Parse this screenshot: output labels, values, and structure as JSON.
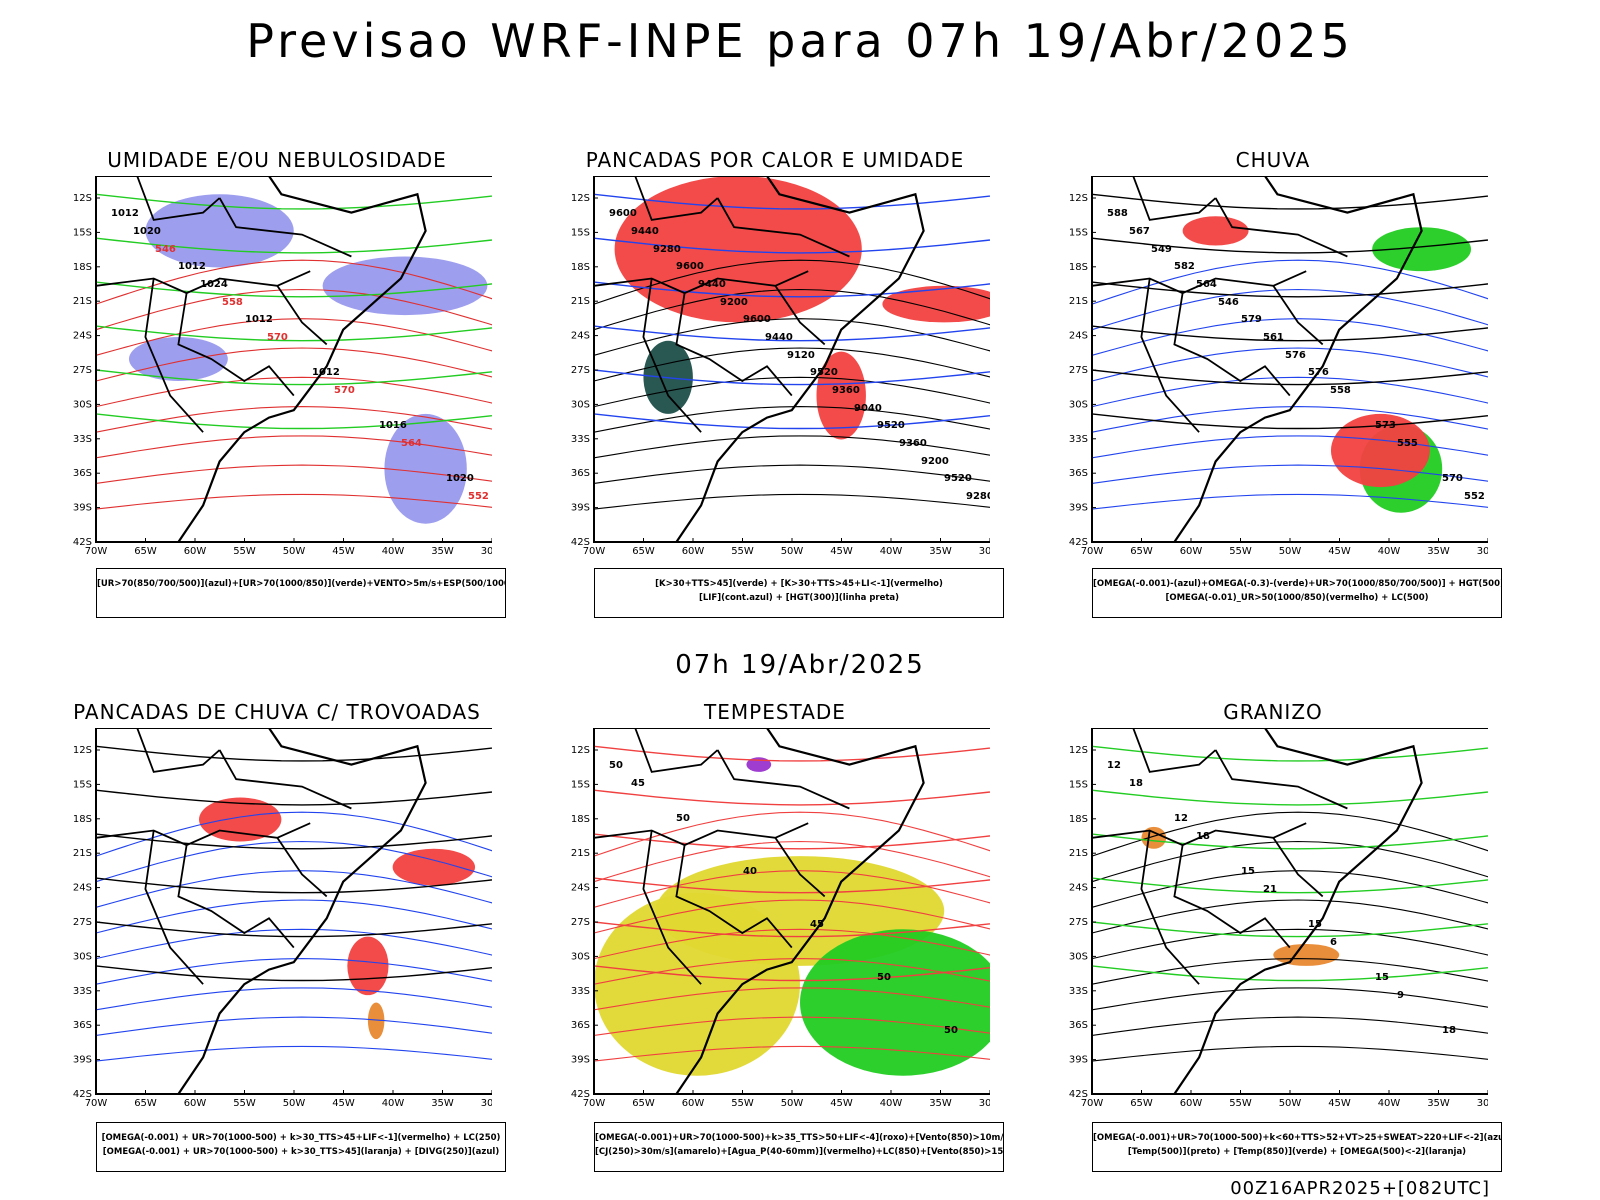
{
  "header": {
    "title": "Previsao WRF-INPE  para 07h 19/Abr/2025",
    "mid_title": "07h 19/Abr/2025",
    "footer": "00Z16APR2025+[082UTC]"
  },
  "axes": {
    "lat_labels": [
      "12S",
      "15S",
      "18S",
      "21S",
      "24S",
      "27S",
      "30S",
      "33S",
      "36S",
      "39S",
      "42S"
    ],
    "lon_labels": [
      "70W",
      "65W",
      "60W",
      "55W",
      "50W",
      "45W",
      "40W",
      "35W",
      "30W"
    ]
  },
  "colors": {
    "blue_fill": "#9999ee",
    "red_fill": "#f24040",
    "green_line": "#22cc22",
    "green_fill": "#22cc22",
    "blue_line": "#2244ee",
    "teal_fill": "#1e4f4a",
    "yellow_fill": "#e0d830",
    "orange": "#e88830",
    "purple": "#9933cc"
  },
  "panels": [
    {
      "id": "umidade",
      "title": "UMIDADE E/OU NEBULOSIDADE",
      "legend": [
        "[UR>70(850/700/500)](azul)+[UR>70(1000/850)](verde)+VENTO>5m/s+ESP(500/1000)"
      ],
      "contour_labels": [
        "1012",
        "1012",
        "1012",
        "1012",
        "1016",
        "1020",
        "1020",
        "1024",
        "570",
        "570",
        "564",
        "552",
        "546",
        "558"
      ]
    },
    {
      "id": "pancadas-calor",
      "title": "PANCADAS POR CALOR E UMIDADE",
      "legend": [
        "[K>30+TTS>45](verde) + [K>30+TTS>45+LI<-1](vermelho)",
        "[LIF](cont.azul) + [HGT(300)](linha preta)"
      ],
      "contour_labels": [
        "9600",
        "9600",
        "9600",
        "9520",
        "9520",
        "9520",
        "9440",
        "9440",
        "9440",
        "9360",
        "9360",
        "9280",
        "9280",
        "9200",
        "9120",
        "9040",
        "9200"
      ]
    },
    {
      "id": "chuva",
      "title": "CHUVA",
      "legend": [
        "[OMEGA(-0.001)-(azul)+OMEGA(-0.3)-(verde)+UR>70(1000/850/700/500)] + HGT(500)",
        "[OMEGA(-0.01)_UR>50(1000/850)(vermelho) + LC(500)"
      ],
      "contour_labels": [
        "588",
        "582",
        "579",
        "576",
        "573",
        "570",
        "567",
        "564",
        "561",
        "558",
        "555",
        "552",
        "549",
        "546",
        "576"
      ]
    },
    {
      "id": "pancadas-trovoadas",
      "title": "PANCADAS DE CHUVA C/ TROVOADAS",
      "legend": [
        "[OMEGA(-0.001) + UR>70(1000-500) + k>30_TTS>45+LIF<-1](vermelho) + LC(250)",
        "[OMEGA(-0.001) + UR>70(1000-500) + k>30_TTS>45](laranja) + [DIVG(250)](azul)"
      ]
    },
    {
      "id": "tempestade",
      "title": "TEMPESTADE",
      "legend": [
        "[OMEGA(-0.001)+UR>70(1000-500)+k>35_TTS>50+LIF<-4](roxo)+[Vento(850)>10m/s](verde)",
        "[CJ(250)>30m/s](amarelo)+[Agua_P(40-60mm)](vermelho)+LC(850)+[Vento(850)>15m/s](vetor)"
      ],
      "contour_labels": [
        "50",
        "50",
        "40",
        "45",
        "50",
        "50",
        "45"
      ]
    },
    {
      "id": "granizo",
      "title": "GRANIZO",
      "legend": [
        "[OMEGA(-0.001)+UR>70(1000-500)+k<60+TTS>52+VT>25+SWEAT>220+LIF<-2](azul)",
        "[Temp(500)](preto) + [Temp(850)](verde) + [OMEGA(500)<-2](laranja)"
      ],
      "contour_labels": [
        "12",
        "12",
        "15",
        "15",
        "15",
        "18",
        "18",
        "18",
        "21",
        "6",
        "9"
      ]
    }
  ]
}
